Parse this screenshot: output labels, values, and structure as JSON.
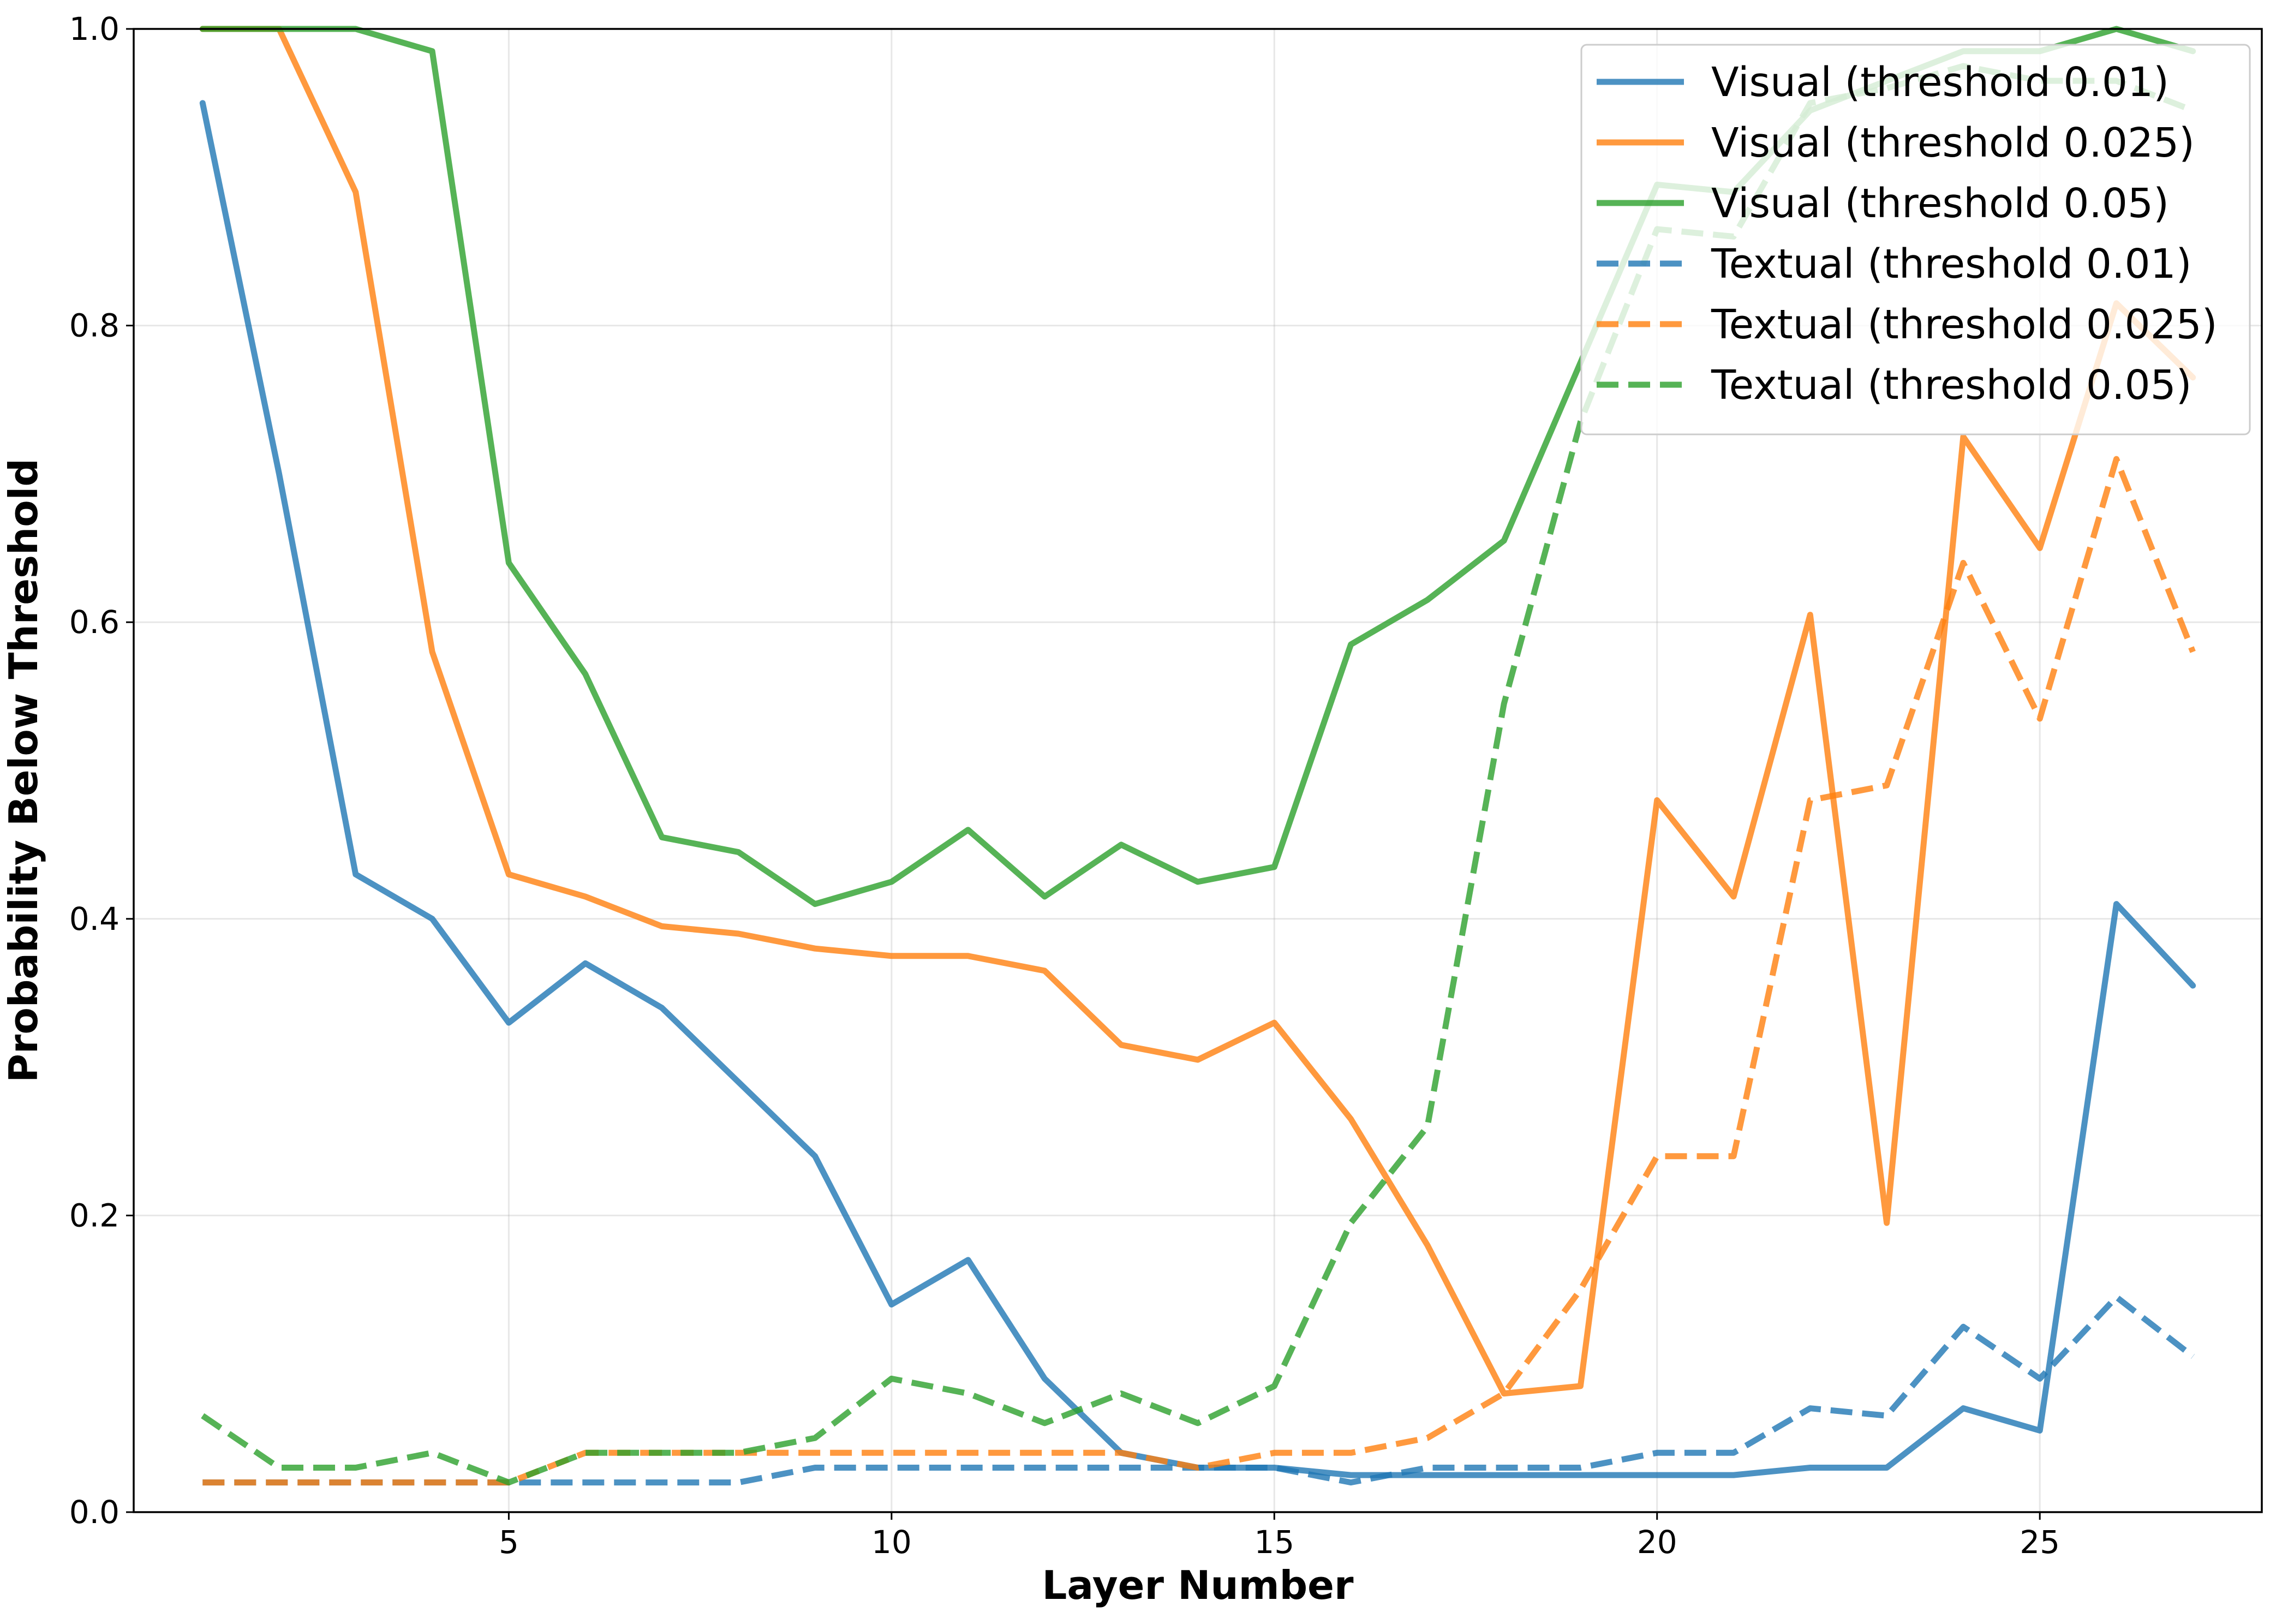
{
  "chart_data": {
    "type": "line",
    "xlabel": "Layer Number",
    "ylabel": "Probability Below Threshold",
    "xlim": [
      0.1,
      27.9
    ],
    "ylim": [
      0.0,
      1.0
    ],
    "xticks": [
      5,
      10,
      15,
      20,
      25
    ],
    "yticks": [
      0.0,
      0.2,
      0.4,
      0.6,
      0.8,
      1.0
    ],
    "xtick_labels": [
      "5",
      "10",
      "15",
      "20",
      "25"
    ],
    "ytick_labels": [
      "0.0",
      "0.2",
      "0.4",
      "0.6",
      "0.8",
      "1.0"
    ],
    "grid": true,
    "legend_position": "top-right",
    "x": [
      1,
      2,
      3,
      4,
      5,
      6,
      7,
      8,
      9,
      10,
      11,
      12,
      13,
      14,
      15,
      16,
      17,
      18,
      19,
      20,
      21,
      22,
      23,
      24,
      25,
      26,
      27
    ],
    "series": [
      {
        "name": "Visual (threshold 0.01)",
        "color": "#1f77b4",
        "style": "solid",
        "values": [
          0.95,
          0.7,
          0.43,
          0.4,
          0.33,
          0.37,
          0.34,
          0.29,
          0.24,
          0.14,
          0.17,
          0.09,
          0.04,
          0.03,
          0.03,
          0.025,
          0.025,
          0.025,
          0.025,
          0.025,
          0.025,
          0.03,
          0.03,
          0.07,
          0.055,
          0.41,
          0.355
        ]
      },
      {
        "name": "Visual (threshold 0.025)",
        "color": "#ff7f0e",
        "style": "solid",
        "values": [
          1.0,
          1.0,
          0.89,
          0.58,
          0.43,
          0.415,
          0.395,
          0.39,
          0.38,
          0.375,
          0.375,
          0.365,
          0.315,
          0.305,
          0.33,
          0.265,
          0.18,
          0.08,
          0.085,
          0.48,
          0.415,
          0.605,
          0.195,
          0.725,
          0.65,
          0.815,
          0.765
        ]
      },
      {
        "name": "Visual (threshold 0.05)",
        "color": "#2ca02c",
        "style": "solid",
        "values": [
          1.0,
          1.0,
          1.0,
          0.985,
          0.64,
          0.565,
          0.455,
          0.445,
          0.41,
          0.425,
          0.46,
          0.415,
          0.45,
          0.425,
          0.435,
          0.585,
          0.615,
          0.655,
          0.775,
          0.895,
          0.89,
          0.945,
          0.965,
          0.985,
          0.985,
          1.0,
          0.985
        ]
      },
      {
        "name": "Textual (threshold 0.01)",
        "color": "#1f77b4",
        "style": "dashed",
        "values": [
          0.02,
          0.02,
          0.02,
          0.02,
          0.02,
          0.02,
          0.02,
          0.02,
          0.03,
          0.03,
          0.03,
          0.03,
          0.03,
          0.03,
          0.03,
          0.02,
          0.03,
          0.03,
          0.03,
          0.04,
          0.04,
          0.07,
          0.065,
          0.125,
          0.09,
          0.145,
          0.105
        ]
      },
      {
        "name": "Textual (threshold 0.025)",
        "color": "#ff7f0e",
        "style": "dashed",
        "values": [
          0.02,
          0.02,
          0.02,
          0.02,
          0.02,
          0.04,
          0.04,
          0.04,
          0.04,
          0.04,
          0.04,
          0.04,
          0.04,
          0.03,
          0.04,
          0.04,
          0.05,
          0.08,
          0.15,
          0.24,
          0.24,
          0.48,
          0.49,
          0.64,
          0.535,
          0.71,
          0.58
        ]
      },
      {
        "name": "Textual (threshold 0.05)",
        "color": "#2ca02c",
        "style": "dashed",
        "values": [
          0.065,
          0.03,
          0.03,
          0.04,
          0.02,
          0.04,
          0.04,
          0.04,
          0.05,
          0.09,
          0.08,
          0.06,
          0.08,
          0.06,
          0.085,
          0.195,
          0.26,
          0.545,
          0.735,
          0.865,
          0.86,
          0.95,
          0.96,
          0.975,
          0.965,
          0.965,
          0.945
        ]
      }
    ]
  }
}
